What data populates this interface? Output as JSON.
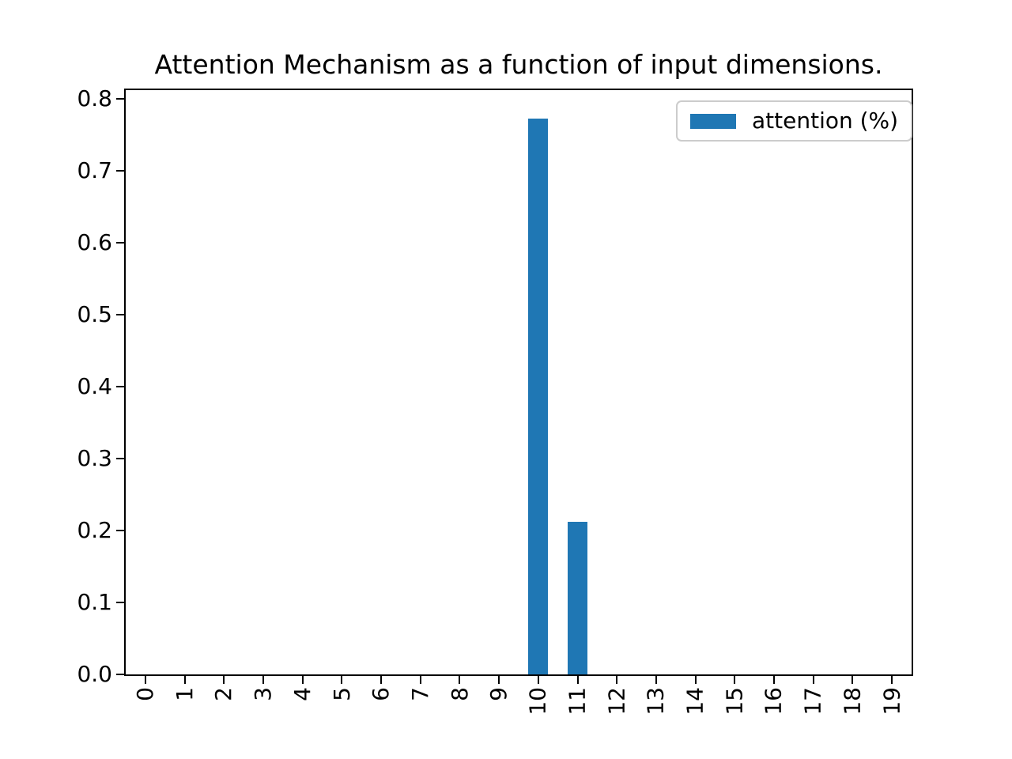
{
  "figure": {
    "background": "#ffffff"
  },
  "chart_data": {
    "type": "bar",
    "title": "Attention Mechanism as a function of input dimensions.",
    "categories": [
      "0",
      "1",
      "2",
      "3",
      "4",
      "5",
      "6",
      "7",
      "8",
      "9",
      "10",
      "11",
      "12",
      "13",
      "14",
      "15",
      "16",
      "17",
      "18",
      "19"
    ],
    "series": [
      {
        "name": "attention (%)",
        "color": "#1f77b4",
        "values": [
          0,
          0,
          0,
          0,
          0,
          0,
          0,
          0,
          0,
          0,
          0.772,
          0.212,
          0,
          0,
          0,
          0,
          0,
          0,
          0,
          0
        ]
      }
    ],
    "xlabel": "",
    "ylabel": "",
    "ylim": [
      0,
      0.812
    ],
    "yticks": [
      0.0,
      0.1,
      0.2,
      0.3,
      0.4,
      0.5,
      0.6,
      0.7,
      0.8
    ],
    "x_tick_rotation": 90,
    "bar_width_fraction": 0.5,
    "grid": false,
    "legend": {
      "position": "upper-right",
      "entries": [
        "attention (%)"
      ]
    },
    "colors": {
      "spine": "#000000",
      "text": "#000000",
      "legend_border": "#cccccc"
    }
  }
}
